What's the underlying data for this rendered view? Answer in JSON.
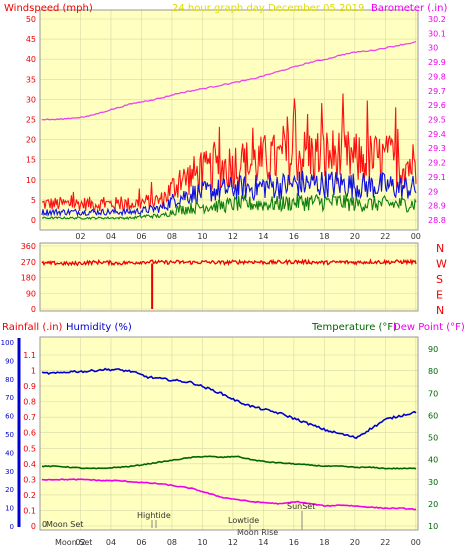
{
  "header": {
    "left": "Windspeed (mph)",
    "center": "24 hour graph day   December 05 2019",
    "right": "Barometer (.in)"
  },
  "colors": {
    "plot_bg": "#ffffc0",
    "grid": "#d8d8a8",
    "gust": "#ff1010",
    "wind": "#1010e0",
    "wind_min": "#108010",
    "barometer": "#ee44ee",
    "direction": "#ee0000",
    "humidity": "#0000cc",
    "temperature": "#006600",
    "dewpoint": "#ee00ee",
    "label_red": "#ee0000",
    "label_blue": "#0000cc",
    "label_green": "#006600",
    "label_magenta": "#ee00ee",
    "axis_text": "#333333",
    "yellow_text": "#dddd00"
  },
  "chart_data": [
    {
      "type": "line",
      "id": "wind",
      "ylim_left": [
        0,
        50
      ],
      "ylim_right": [
        28.8,
        30.2
      ],
      "left_ticks": [
        "0",
        "5",
        "10",
        "15",
        "20",
        "25",
        "30",
        "35",
        "40",
        "45",
        "50"
      ],
      "right_ticks": [
        "28.8",
        "28.9",
        "29",
        "29.1",
        "29.2",
        "29.3",
        "29.4",
        "29.5",
        "29.6",
        "29.7",
        "29.8",
        "29.9",
        "30",
        "30.1",
        "30.2"
      ],
      "x_ticks": [
        "02",
        "04",
        "06",
        "08",
        "10",
        "12",
        "14",
        "16",
        "18",
        "20",
        "22",
        "00"
      ],
      "series": [
        {
          "id": "gust",
          "values": [
            4,
            4,
            4,
            4,
            4,
            4,
            4,
            4.5,
            5,
            9,
            11,
            12,
            13,
            14,
            14,
            15,
            15,
            16,
            16,
            16,
            16,
            15,
            15,
            15,
            14,
            14
          ]
        },
        {
          "id": "wind",
          "values": [
            2,
            2,
            2,
            2,
            2,
            2,
            2,
            2.5,
            3,
            5.5,
            6.5,
            7,
            7.5,
            8,
            8,
            8.5,
            8.5,
            9,
            9,
            9,
            9,
            8.5,
            8.5,
            8.5,
            8,
            8
          ]
        },
        {
          "id": "wind_min",
          "values": [
            0.5,
            0.5,
            0.5,
            0.5,
            0.5,
            0.5,
            0.5,
            1,
            1,
            2.5,
            3,
            3.5,
            3.5,
            4,
            4,
            4,
            4,
            4.5,
            4.5,
            4.5,
            4.5,
            4,
            4,
            4,
            4,
            4
          ]
        },
        {
          "id": "barometer",
          "values": [
            29.5,
            29.5,
            29.51,
            29.52,
            29.55,
            29.58,
            29.61,
            29.63,
            29.65,
            29.68,
            29.7,
            29.72,
            29.74,
            29.76,
            29.78,
            29.81,
            29.84,
            29.87,
            29.9,
            29.92,
            29.95,
            29.97,
            29.98,
            30.0,
            30.02,
            30.04
          ]
        }
      ]
    },
    {
      "type": "line",
      "id": "direction",
      "ylim": [
        0,
        360
      ],
      "left_ticks": [
        "0",
        "90",
        "180",
        "270",
        "360"
      ],
      "compass": [
        "N",
        "W",
        "S",
        "E",
        "N"
      ],
      "series": [
        {
          "id": "direction",
          "values": [
            260,
            262,
            258,
            265,
            268,
            262,
            265,
            270,
            266,
            268,
            266,
            268,
            265,
            268,
            270,
            266,
            268,
            270,
            268,
            265,
            268,
            266,
            270,
            268,
            270,
            268
          ]
        }
      ]
    },
    {
      "type": "line",
      "id": "humidity_temp",
      "header_left_a": "Rainfall (.in)",
      "header_left_b": "Humidity (%)",
      "header_right_a": "Temperature (°F)",
      "header_right_b": "Dew Point (°F)",
      "rain_ticks": [
        "0",
        "0.1",
        "0.2",
        "0.3",
        "0.4",
        "0.5",
        "0.6",
        "0.7",
        "0.8",
        "0.9",
        "1",
        "1.1"
      ],
      "humidity_ticks": [
        "0",
        "10",
        "20",
        "30",
        "40",
        "50",
        "60",
        "70",
        "80",
        "90",
        "100"
      ],
      "temp_ticks": [
        "10",
        "20",
        "30",
        "40",
        "50",
        "60",
        "70",
        "80",
        "90"
      ],
      "x_ticks": [
        "02",
        "04",
        "06",
        "08",
        "10",
        "12",
        "14",
        "16",
        "18",
        "20",
        "22",
        "00"
      ],
      "series": [
        {
          "id": "humidity",
          "values": [
            83,
            83,
            84,
            84,
            85,
            85,
            84,
            81,
            80,
            79,
            78,
            75,
            72,
            68,
            65,
            63,
            61,
            58,
            55,
            52,
            50,
            48,
            53,
            58,
            60,
            62
          ]
        },
        {
          "id": "temperature",
          "values": [
            37,
            37,
            36.5,
            36,
            36,
            36.5,
            37,
            38,
            39,
            40,
            41,
            41.5,
            41,
            41.5,
            40,
            39,
            38.5,
            38,
            37.5,
            37,
            37,
            36.5,
            36.5,
            36,
            36,
            36
          ]
        },
        {
          "id": "dewpoint",
          "values": [
            31,
            31,
            31,
            31,
            30.5,
            30.5,
            30,
            29.5,
            29,
            28,
            27,
            25,
            23,
            22,
            21,
            20.5,
            20,
            21,
            20,
            19,
            19.5,
            19,
            18.5,
            18,
            18,
            17.5
          ]
        }
      ],
      "annotations": {
        "moon_set": "Moon Set",
        "moon_set_bottom": "Moon Set",
        "hightide": "Hightide",
        "lowtide": "Lowtide",
        "sunset": "SunSet",
        "moonrise": "Moon Rise",
        "bottom_zero": "0"
      }
    }
  ]
}
